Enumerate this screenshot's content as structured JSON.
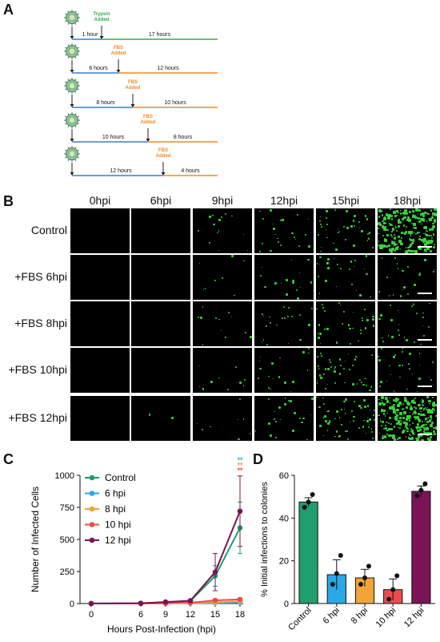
{
  "panel_letters": [
    "A",
    "B",
    "C",
    "D"
  ],
  "panel_a": {
    "timelines": [
      {
        "added": "Trypsin Added",
        "added_color": "#3aa84a",
        "seg1": "1 hour",
        "seg2": "17 hours",
        "color2": "#3aa84a"
      },
      {
        "added": "FBS Added",
        "added_color": "#f08a24",
        "seg1": "6 hours",
        "seg2": "12 hours",
        "color2": "#f08a24"
      },
      {
        "added": "FBS Added",
        "added_color": "#f08a24",
        "seg1": "8 hours",
        "seg2": "10 hours",
        "color2": "#f08a24"
      },
      {
        "added": "FBS Added",
        "added_color": "#f08a24",
        "seg1": "10 hours",
        "seg2": "8 hours",
        "color2": "#f08a24"
      },
      {
        "added": "FBS Added",
        "added_color": "#f08a24",
        "seg1": "12 hours",
        "seg2": "4 hours",
        "color2": "#f08a24"
      }
    ],
    "seg1_color": "#3d7fd6"
  },
  "panel_b": {
    "columns": [
      "0hpi",
      "6hpi",
      "9hpi",
      "12hpi",
      "15hpi",
      "18hpi"
    ],
    "rows": [
      "Control",
      "+FBS 6hpi",
      "+FBS 8hpi",
      "+FBS 10hpi",
      "+FBS 12hpi"
    ],
    "density": [
      [
        0,
        0,
        14,
        22,
        40,
        260
      ],
      [
        0,
        0,
        8,
        16,
        28,
        22
      ],
      [
        0,
        0,
        12,
        20,
        34,
        26
      ],
      [
        0,
        0,
        10,
        18,
        46,
        30
      ],
      [
        0,
        2,
        8,
        22,
        60,
        280
      ]
    ],
    "signal_color": "#38d23a"
  },
  "chart_data": [
    {
      "type": "line",
      "ylabel": "Number of Infected Cells",
      "xlabel": "Hours Post-Infection (hpi)",
      "x": [
        0,
        6,
        9,
        12,
        15,
        18
      ],
      "ylim": [
        0,
        1000
      ],
      "yticks": [
        0,
        250,
        500,
        750,
        1000
      ],
      "series": [
        {
          "name": "Control",
          "color": "#1f9e6e",
          "values": [
            0,
            2,
            10,
            20,
            215,
            590
          ],
          "err": [
            0,
            1,
            4,
            6,
            80,
            200
          ]
        },
        {
          "name": "6 hpi",
          "color": "#2aa8e8",
          "values": [
            0,
            1,
            2,
            4,
            5,
            8
          ],
          "err": [
            0,
            0,
            1,
            2,
            3,
            4
          ]
        },
        {
          "name": "8 hpi",
          "color": "#f2a33a",
          "values": [
            0,
            1,
            2,
            5,
            10,
            18
          ],
          "err": [
            0,
            0,
            1,
            2,
            5,
            6
          ]
        },
        {
          "name": "10 hpi",
          "color": "#ee4c4c",
          "values": [
            0,
            1,
            2,
            6,
            25,
            32
          ],
          "err": [
            0,
            0,
            1,
            3,
            10,
            10
          ]
        },
        {
          "name": "12 hpi",
          "color": "#7a1456",
          "values": [
            0,
            2,
            12,
            22,
            245,
            720
          ],
          "err": [
            0,
            1,
            5,
            8,
            145,
            275
          ]
        }
      ],
      "significance": "**",
      "significance_colors": [
        "#2aa8e8",
        "#f2a33a",
        "#ee4c4c"
      ]
    },
    {
      "type": "bar",
      "ylabel": "% Initial infections to colonies",
      "categories": [
        "Control",
        "6 hpi",
        "8 hpi",
        "10 hpi",
        "12 hpi"
      ],
      "values": [
        47.5,
        13.5,
        12,
        6.5,
        52.5
      ],
      "errors": [
        2,
        7,
        4,
        5,
        2.5
      ],
      "points": [
        [
          45,
          47.5,
          51
        ],
        [
          9,
          14,
          22.5
        ],
        [
          9,
          12,
          17.5
        ],
        [
          2,
          6.5,
          13
        ],
        [
          50.5,
          53,
          56
        ]
      ],
      "colors": [
        "#1f9e6e",
        "#2aa8e8",
        "#f2a33a",
        "#ee4c4c",
        "#7a1456"
      ],
      "ylim": [
        0,
        60
      ],
      "yticks": [
        0,
        20,
        40,
        60
      ]
    }
  ]
}
